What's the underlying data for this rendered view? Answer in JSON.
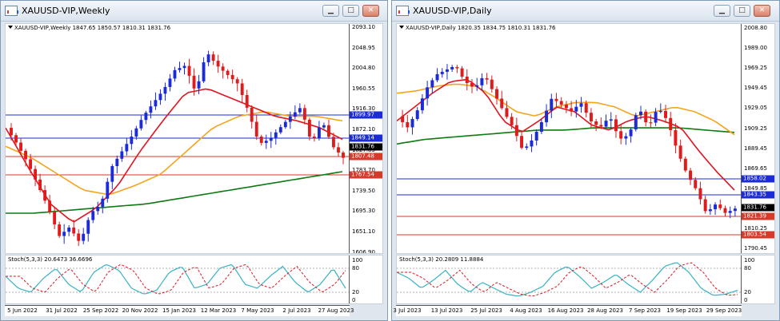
{
  "left": {
    "title": "XAUUSD-VIP,Weekly",
    "info": "XAUUSD-VIP,Weekly  1847.65 1850.57 1810.31 1831.76",
    "price_labels": [
      "2093.10",
      "2048.95",
      "2004.80",
      "1960.55",
      "1916.30",
      "1872.10",
      "1827.85",
      "1783.70",
      "1739.50",
      "1695.30",
      "1651.10",
      "1606.90"
    ],
    "tags": [
      {
        "text": "1899.97",
        "color": "#1b2bd6"
      },
      {
        "text": "1849.14",
        "color": "#1b2bd6"
      },
      {
        "text": "1831.76",
        "color": "#000000"
      },
      {
        "text": "1807.48",
        "color": "#d63a2a"
      },
      {
        "text": "1767.54",
        "color": "#d63a2a"
      }
    ],
    "stoch_label": "Stoch(5,3,3) 20.6473 36.6696",
    "stoch_levels": [
      "100",
      "80",
      "20",
      "0"
    ],
    "x_labels": [
      "5 Jun 2022",
      "31 Jul 2022",
      "25 Sep 2022",
      "20 Nov 2022",
      "15 Jan 2023",
      "12 Mar 2023",
      "7 May 2023",
      "2 Jul 2023",
      "27 Aug 2023"
    ]
  },
  "right": {
    "title": "XAUUSD-VIP,Daily",
    "info": "XAUUSD-VIP,Daily  1820.35 1834.75 1810.31 1831.76",
    "price_labels": [
      "2008.80",
      "1989.00",
      "1969.25",
      "1949.45",
      "1929.05",
      "1909.25",
      "1889.45",
      "1869.65",
      "1849.85",
      "1830.05",
      "1810.25",
      "1790.45"
    ],
    "tags": [
      {
        "text": "1858.02",
        "color": "#1b2bd6"
      },
      {
        "text": "1843.35",
        "color": "#1b2bd6"
      },
      {
        "text": "1831.76",
        "color": "#000000"
      },
      {
        "text": "1821.39",
        "color": "#d63a2a"
      },
      {
        "text": "1803.54",
        "color": "#d63a2a"
      }
    ],
    "stoch_label": "Stoch(5,3,3) 20.2809 11.8884",
    "stoch_levels": [
      "100",
      "80",
      "20",
      "0"
    ],
    "x_labels": [
      "3 Jul 2023",
      "13 Jul 2023",
      "25 Jul 2023",
      "4 Aug 2023",
      "16 Aug 2023",
      "28 Aug 2023",
      "7 Sep 2023",
      "19 Sep 2023",
      "29 Sep 2023"
    ]
  },
  "colors": {
    "bull": "#1b2bd6",
    "bear": "#e01b1b",
    "ma_fast": "#e0141e",
    "ma_mid": "#f5a31c",
    "ma_slow": "#0e7a12",
    "support": "#d63a2a",
    "resistance": "#1b2bd6",
    "stoch_main": "#37b3c4",
    "stoch_signal": "#e0141e"
  },
  "window_buttons": {
    "minimize": "▁",
    "maximize": "□",
    "close": "✕"
  }
}
